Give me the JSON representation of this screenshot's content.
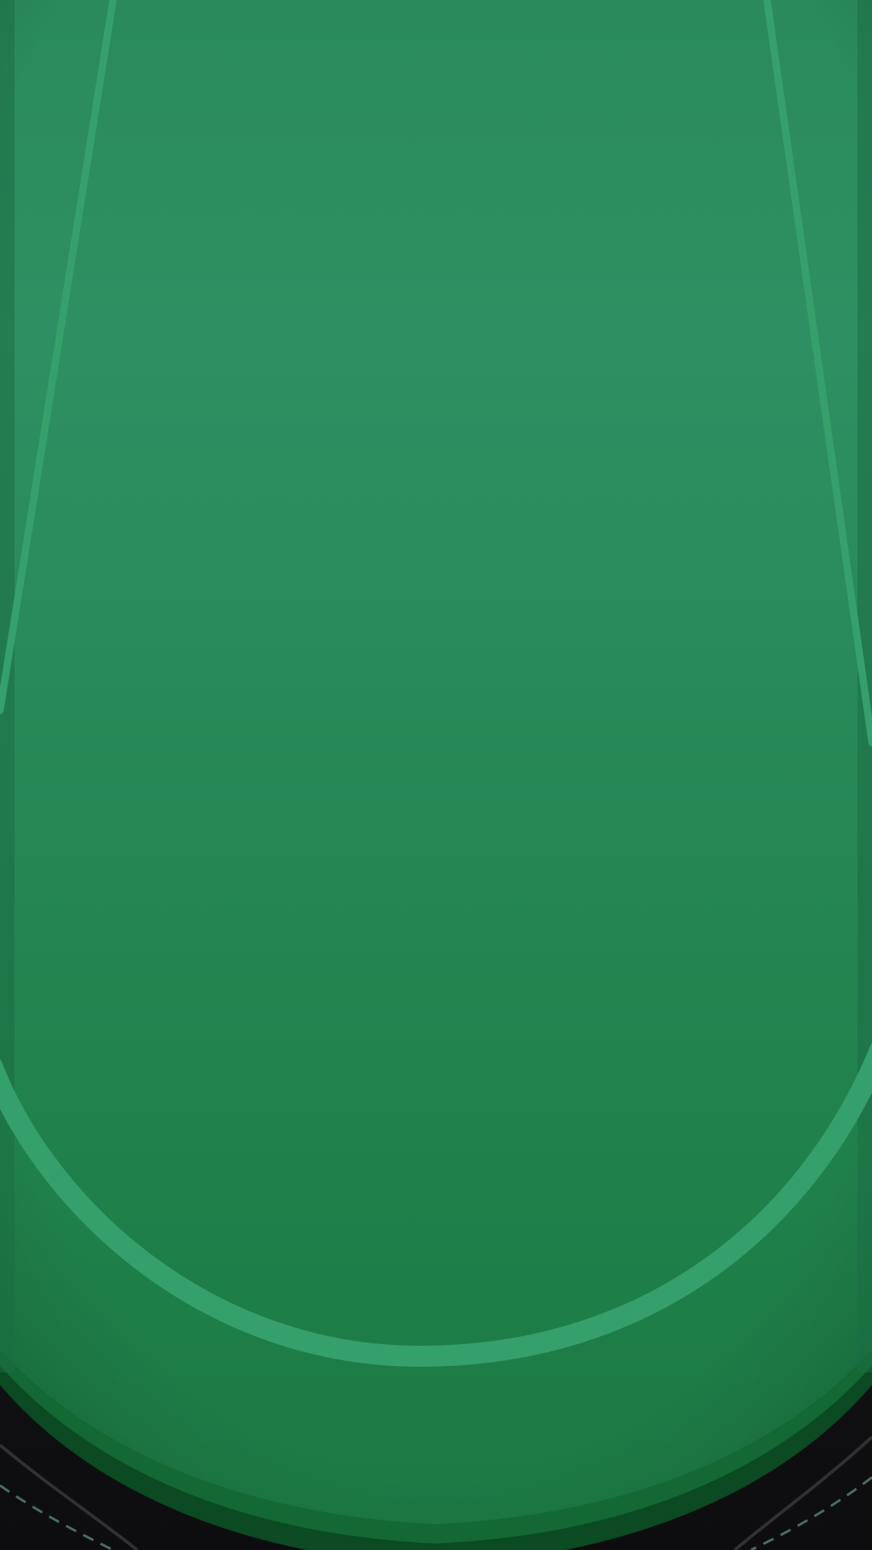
{
  "scene": {
    "kind": "poker-table-felt",
    "orientation": "portrait"
  },
  "colors": {
    "felt_top": "#2a8a5a",
    "felt_mid": "#2e9062",
    "felt_bottom": "#1e7e48",
    "felt_edge": "#1c7a44",
    "felt_outer_ring": "#146834",
    "felt_dark_band": "#0b4a22",
    "rail_dark": "#1a1a1c",
    "rail_highlight": "#3a3a3e",
    "line": "#36a06c",
    "stitch": "#4a6e5e"
  }
}
